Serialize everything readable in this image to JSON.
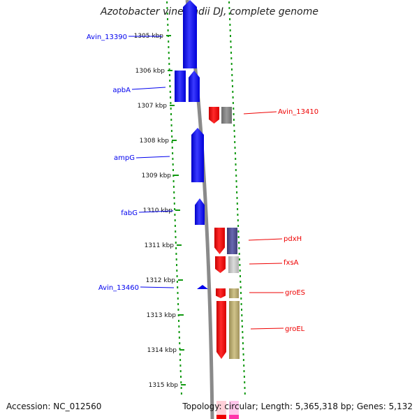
{
  "title": "Azotobacter vinelandii DJ, complete genome",
  "accession": "Accession: NC_012560",
  "topology": "Topology: circular; Length: 5,365,318 bp; Genes: 5,132",
  "ticks": [
    "1305 kbp",
    "1306 kbp",
    "1307 kbp",
    "1308 kbp",
    "1309 kbp",
    "1310 kbp",
    "1311 kbp",
    "1312 kbp",
    "1313 kbp",
    "1314 kbp",
    "1315 kbp"
  ],
  "colors": {
    "forward_gene": "#0000ee",
    "reverse_gene": "#ee0000",
    "backbone": "#888888",
    "dotted_track": "#119911",
    "tick": "#119911"
  },
  "genes": [
    {
      "label": "Avin_13390",
      "strand": "forward"
    },
    {
      "label": "apbA",
      "strand": "forward"
    },
    {
      "label": "ampG",
      "strand": "forward"
    },
    {
      "label": "fabG",
      "strand": "forward"
    },
    {
      "label": "Avin_13460",
      "strand": "forward"
    },
    {
      "label": "Avin_13410",
      "strand": "reverse"
    },
    {
      "label": "pdxH",
      "strand": "reverse"
    },
    {
      "label": "fxsA",
      "strand": "reverse"
    },
    {
      "label": "groES",
      "strand": "reverse"
    },
    {
      "label": "groEL",
      "strand": "reverse"
    }
  ]
}
